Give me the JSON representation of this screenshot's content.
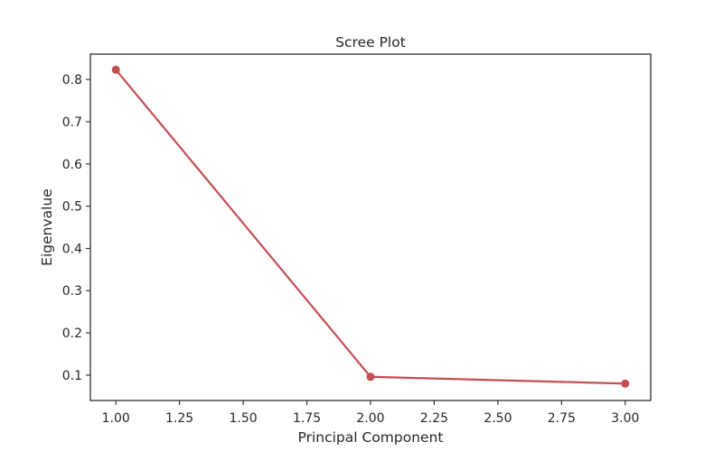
{
  "chart_data": {
    "type": "line",
    "title": "Scree Plot",
    "xlabel": "Principal Component",
    "ylabel": "Eigenvalue",
    "xlim": [
      0.9,
      3.1
    ],
    "ylim": [
      0.04,
      0.86
    ],
    "x_ticks": [
      1.0,
      1.25,
      1.5,
      1.75,
      2.0,
      2.25,
      2.5,
      2.75,
      3.0
    ],
    "x_tick_labels": [
      "1.00",
      "1.25",
      "1.50",
      "1.75",
      "2.00",
      "2.25",
      "2.50",
      "2.75",
      "3.00"
    ],
    "y_ticks": [
      0.1,
      0.2,
      0.3,
      0.4,
      0.5,
      0.6,
      0.7,
      0.8
    ],
    "y_tick_labels": [
      "0.1",
      "0.2",
      "0.3",
      "0.4",
      "0.5",
      "0.6",
      "0.7",
      "0.8"
    ],
    "grid": false,
    "series": [
      {
        "x": [
          1,
          2,
          3
        ],
        "values": [
          0.823,
          0.096,
          0.08
        ],
        "color": "#c44e52",
        "marker": "circle"
      }
    ]
  }
}
